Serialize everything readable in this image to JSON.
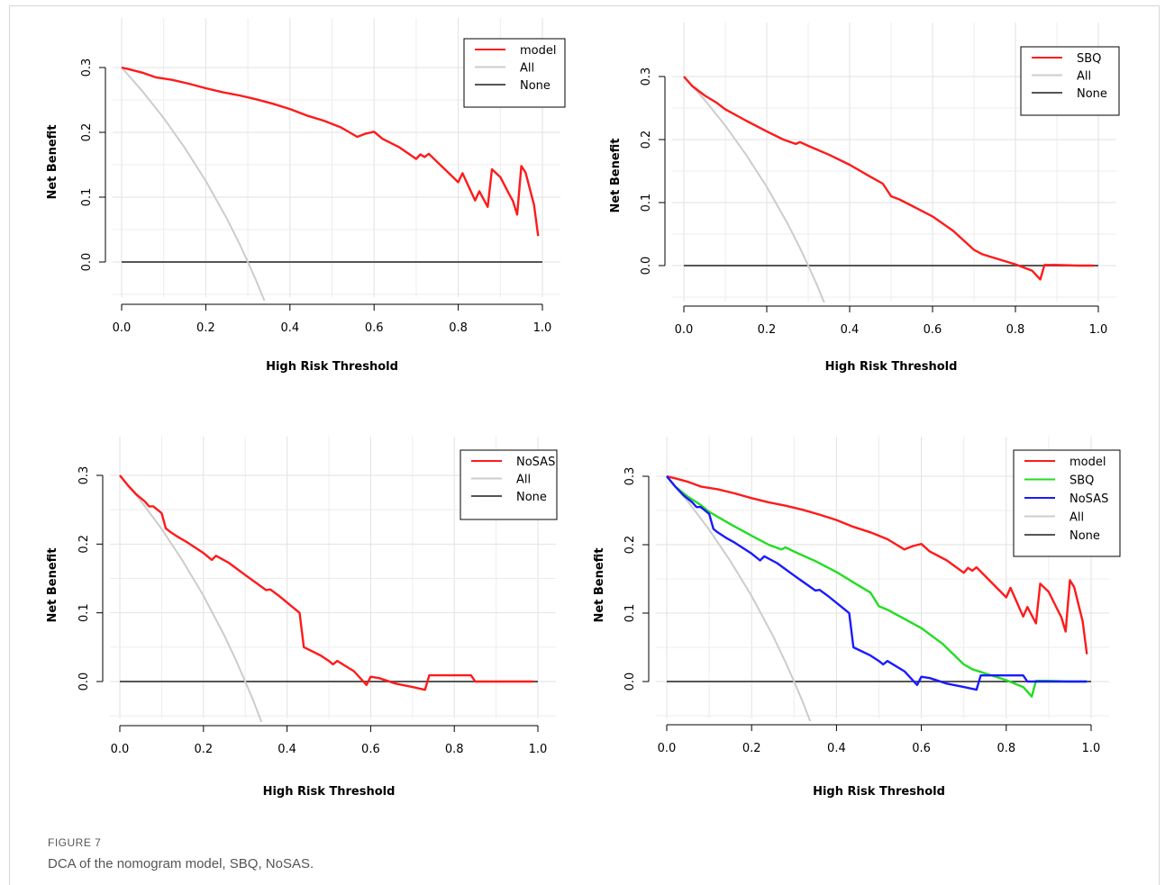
{
  "figure": {
    "label": "FIGURE 7",
    "caption": "DCA of the nomogram model, SBQ, NoSAS."
  },
  "colors": {
    "model": "#ff1a1a",
    "SBQ": "#22dd22",
    "NoSAS": "#1a1aff",
    "All": "#cccccc",
    "None": "#555555"
  },
  "chart_data": [
    {
      "type": "line",
      "xlabel": "High Risk Threshold",
      "ylabel": "Net Benefit",
      "xlim": [
        0,
        1
      ],
      "ylim": [
        -0.065,
        0.31
      ],
      "xticks": [
        "0.0",
        "0.2",
        "0.4",
        "0.6",
        "0.8",
        "1.0"
      ],
      "yticks": [
        "0.0",
        "0.1",
        "0.2",
        "0.3"
      ],
      "grid": true,
      "legend": "top-right",
      "series": [
        {
          "name": "model",
          "color": "#ff1a1a",
          "x": [
            0,
            0.02,
            0.05,
            0.08,
            0.12,
            0.16,
            0.2,
            0.24,
            0.28,
            0.32,
            0.36,
            0.4,
            0.44,
            0.48,
            0.52,
            0.56,
            0.58,
            0.6,
            0.62,
            0.66,
            0.7,
            0.71,
            0.72,
            0.73,
            0.76,
            0.8,
            0.81,
            0.84,
            0.85,
            0.87,
            0.88,
            0.9,
            0.92,
            0.93,
            0.94,
            0.95,
            0.96,
            0.98,
            0.99
          ],
          "y": [
            0.3,
            0.297,
            0.292,
            0.285,
            0.281,
            0.275,
            0.268,
            0.262,
            0.257,
            0.251,
            0.244,
            0.236,
            0.226,
            0.218,
            0.208,
            0.193,
            0.198,
            0.201,
            0.19,
            0.177,
            0.159,
            0.166,
            0.162,
            0.167,
            0.148,
            0.123,
            0.137,
            0.095,
            0.109,
            0.085,
            0.143,
            0.131,
            0.106,
            0.094,
            0.073,
            0.148,
            0.138,
            0.088,
            0.04
          ]
        },
        {
          "name": "All",
          "color": "#cccccc",
          "x": [
            0,
            0.05,
            0.1,
            0.15,
            0.2,
            0.25,
            0.28,
            0.3,
            0.32,
            0.34,
            0.345
          ],
          "y": [
            0.3,
            0.263,
            0.222,
            0.176,
            0.125,
            0.067,
            0.028,
            0,
            -0.029,
            -0.061,
            -0.069
          ]
        },
        {
          "name": "None",
          "color": "#555555",
          "x": [
            0,
            1
          ],
          "y": [
            0,
            0
          ]
        }
      ]
    },
    {
      "type": "line",
      "xlabel": "High Risk Threshold",
      "ylabel": "Net Benefit",
      "xlim": [
        0,
        1
      ],
      "ylim": [
        -0.06,
        0.31
      ],
      "xticks": [
        "0.0",
        "0.2",
        "0.4",
        "0.6",
        "0.8",
        "1.0"
      ],
      "yticks": [
        "0.0",
        "0.1",
        "0.2",
        "0.3"
      ],
      "grid": true,
      "legend": "top-right",
      "series": [
        {
          "name": "SBQ",
          "color": "#ff1a1a",
          "x": [
            0,
            0.02,
            0.05,
            0.08,
            0.1,
            0.15,
            0.2,
            0.24,
            0.27,
            0.28,
            0.3,
            0.35,
            0.4,
            0.45,
            0.48,
            0.49,
            0.5,
            0.52,
            0.55,
            0.6,
            0.65,
            0.68,
            0.7,
            0.72,
            0.75,
            0.8,
            0.84,
            0.86,
            0.87,
            0.9,
            0.95,
            0.99
          ],
          "y": [
            0.3,
            0.285,
            0.27,
            0.258,
            0.248,
            0.23,
            0.213,
            0.2,
            0.193,
            0.196,
            0.19,
            0.176,
            0.16,
            0.141,
            0.13,
            0.12,
            0.11,
            0.105,
            0.095,
            0.078,
            0.055,
            0.037,
            0.025,
            0.018,
            0.012,
            0.002,
            -0.008,
            -0.022,
            0.001,
            0.001,
            0,
            0
          ]
        },
        {
          "name": "All",
          "color": "#cccccc",
          "x": [
            0,
            0.05,
            0.1,
            0.15,
            0.2,
            0.25,
            0.28,
            0.3,
            0.32,
            0.34,
            0.345
          ],
          "y": [
            0.3,
            0.263,
            0.222,
            0.176,
            0.125,
            0.067,
            0.028,
            0,
            -0.029,
            -0.061,
            -0.069
          ]
        },
        {
          "name": "None",
          "color": "#555555",
          "x": [
            0,
            1
          ],
          "y": [
            0,
            0
          ]
        }
      ]
    },
    {
      "type": "line",
      "xlabel": "High Risk Threshold",
      "ylabel": "Net Benefit",
      "xlim": [
        0,
        1
      ],
      "ylim": [
        -0.065,
        0.31
      ],
      "xticks": [
        "0.0",
        "0.2",
        "0.4",
        "0.6",
        "0.8",
        "1.0"
      ],
      "yticks": [
        "0.0",
        "0.1",
        "0.2",
        "0.3"
      ],
      "grid": true,
      "legend": "top-right",
      "series": [
        {
          "name": "NoSAS",
          "color": "#ff1a1a",
          "x": [
            0,
            0.02,
            0.04,
            0.06,
            0.07,
            0.08,
            0.09,
            0.1,
            0.11,
            0.12,
            0.14,
            0.16,
            0.2,
            0.22,
            0.23,
            0.26,
            0.3,
            0.35,
            0.36,
            0.38,
            0.42,
            0.43,
            0.44,
            0.48,
            0.5,
            0.51,
            0.52,
            0.56,
            0.59,
            0.6,
            0.62,
            0.66,
            0.7,
            0.73,
            0.74,
            0.76,
            0.8,
            0.84,
            0.85,
            0.9,
            0.99
          ],
          "y": [
            0.3,
            0.285,
            0.272,
            0.262,
            0.255,
            0.255,
            0.25,
            0.245,
            0.223,
            0.218,
            0.21,
            0.203,
            0.187,
            0.177,
            0.183,
            0.173,
            0.155,
            0.133,
            0.134,
            0.125,
            0.105,
            0.1,
            0.05,
            0.038,
            0.03,
            0.025,
            0.03,
            0.015,
            -0.005,
            0.007,
            0.005,
            -0.003,
            -0.008,
            -0.012,
            0.009,
            0.009,
            0.009,
            0.009,
            0,
            0,
            0
          ]
        },
        {
          "name": "All",
          "color": "#cccccc",
          "x": [
            0,
            0.05,
            0.1,
            0.15,
            0.2,
            0.25,
            0.28,
            0.3,
            0.32,
            0.34,
            0.345
          ],
          "y": [
            0.3,
            0.263,
            0.222,
            0.176,
            0.125,
            0.067,
            0.028,
            0,
            -0.029,
            -0.061,
            -0.069
          ]
        },
        {
          "name": "None",
          "color": "#555555",
          "x": [
            0,
            1
          ],
          "y": [
            0,
            0
          ]
        }
      ]
    },
    {
      "type": "line",
      "xlabel": "High Risk Threshold",
      "ylabel": "Net Benefit",
      "xlim": [
        0,
        1
      ],
      "ylim": [
        -0.065,
        0.31
      ],
      "xticks": [
        "0.0",
        "0.2",
        "0.4",
        "0.6",
        "0.8",
        "1.0"
      ],
      "yticks": [
        "0.0",
        "0.1",
        "0.2",
        "0.3"
      ],
      "grid": true,
      "legend": "top-right",
      "series": [
        {
          "name": "model",
          "color": "#ff1a1a",
          "x": [
            0,
            0.02,
            0.05,
            0.08,
            0.12,
            0.16,
            0.2,
            0.24,
            0.28,
            0.32,
            0.36,
            0.4,
            0.44,
            0.48,
            0.52,
            0.56,
            0.58,
            0.6,
            0.62,
            0.66,
            0.7,
            0.71,
            0.72,
            0.73,
            0.76,
            0.8,
            0.81,
            0.84,
            0.85,
            0.87,
            0.88,
            0.9,
            0.92,
            0.93,
            0.94,
            0.95,
            0.96,
            0.98,
            0.99
          ],
          "y": [
            0.3,
            0.297,
            0.292,
            0.285,
            0.281,
            0.275,
            0.268,
            0.262,
            0.257,
            0.251,
            0.244,
            0.236,
            0.226,
            0.218,
            0.208,
            0.193,
            0.198,
            0.201,
            0.19,
            0.177,
            0.159,
            0.166,
            0.162,
            0.167,
            0.148,
            0.123,
            0.137,
            0.095,
            0.109,
            0.085,
            0.143,
            0.131,
            0.106,
            0.094,
            0.073,
            0.148,
            0.138,
            0.088,
            0.04
          ]
        },
        {
          "name": "SBQ",
          "color": "#22dd22",
          "x": [
            0,
            0.02,
            0.05,
            0.08,
            0.1,
            0.15,
            0.2,
            0.24,
            0.27,
            0.28,
            0.3,
            0.35,
            0.4,
            0.45,
            0.48,
            0.49,
            0.5,
            0.52,
            0.55,
            0.6,
            0.65,
            0.68,
            0.7,
            0.72,
            0.75,
            0.8,
            0.84,
            0.86,
            0.87,
            0.9,
            0.95,
            0.99
          ],
          "y": [
            0.3,
            0.285,
            0.27,
            0.258,
            0.248,
            0.23,
            0.213,
            0.2,
            0.193,
            0.196,
            0.19,
            0.176,
            0.16,
            0.141,
            0.13,
            0.12,
            0.11,
            0.105,
            0.095,
            0.078,
            0.055,
            0.037,
            0.025,
            0.018,
            0.012,
            0.002,
            -0.008,
            -0.022,
            0.001,
            0.001,
            0,
            0
          ]
        },
        {
          "name": "NoSAS",
          "color": "#1a1aff",
          "x": [
            0,
            0.02,
            0.04,
            0.06,
            0.07,
            0.08,
            0.09,
            0.1,
            0.11,
            0.12,
            0.14,
            0.16,
            0.2,
            0.22,
            0.23,
            0.26,
            0.3,
            0.35,
            0.36,
            0.38,
            0.42,
            0.43,
            0.44,
            0.48,
            0.5,
            0.51,
            0.52,
            0.56,
            0.59,
            0.6,
            0.62,
            0.66,
            0.7,
            0.73,
            0.74,
            0.76,
            0.8,
            0.84,
            0.85,
            0.9,
            0.99
          ],
          "y": [
            0.3,
            0.285,
            0.272,
            0.262,
            0.255,
            0.255,
            0.25,
            0.245,
            0.223,
            0.218,
            0.21,
            0.203,
            0.187,
            0.177,
            0.183,
            0.173,
            0.155,
            0.133,
            0.134,
            0.125,
            0.105,
            0.1,
            0.05,
            0.038,
            0.03,
            0.025,
            0.03,
            0.015,
            -0.005,
            0.007,
            0.005,
            -0.003,
            -0.008,
            -0.012,
            0.009,
            0.009,
            0.009,
            0.009,
            0,
            0,
            0
          ]
        },
        {
          "name": "All",
          "color": "#cccccc",
          "x": [
            0,
            0.05,
            0.1,
            0.15,
            0.2,
            0.25,
            0.28,
            0.3,
            0.32,
            0.34,
            0.345
          ],
          "y": [
            0.3,
            0.263,
            0.222,
            0.176,
            0.125,
            0.067,
            0.028,
            0,
            -0.029,
            -0.061,
            -0.069
          ]
        },
        {
          "name": "None",
          "color": "#555555",
          "x": [
            0,
            1
          ],
          "y": [
            0,
            0
          ]
        }
      ]
    }
  ]
}
